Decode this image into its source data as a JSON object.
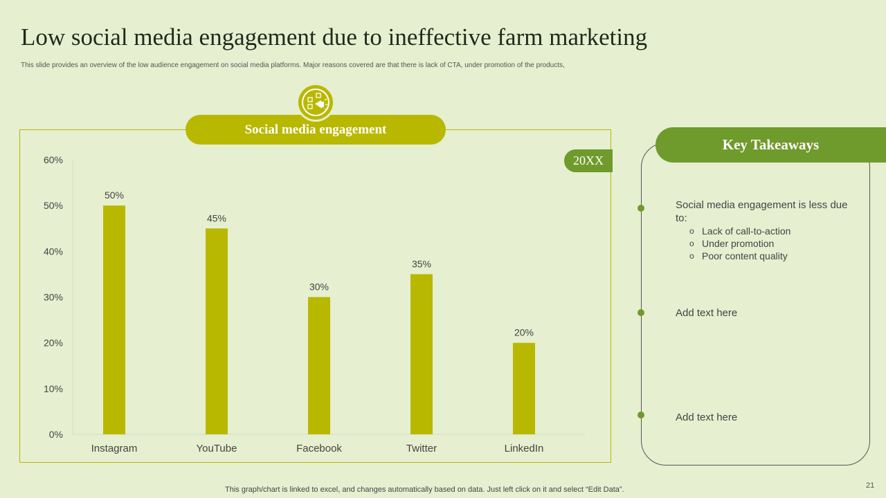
{
  "slide": {
    "title": "Low social media engagement due to ineffective farm marketing",
    "subtitle": "This slide provides an overview of the low audience engagement on social media platforms. Major reasons covered are that there is lack of CTA,  under promotion of the products,",
    "footer": "This graph/chart is linked to excel,  and changes automatically based on data. Just left click on it and select “Edit Data”.",
    "page_number": "21"
  },
  "chart_panel": {
    "header": "Social media engagement",
    "year_tab": "20XX",
    "icon": "megaphone-chart-icon"
  },
  "takeaways": {
    "header": "Key Takeaways",
    "items": [
      {
        "text": "Social media engagement is less due to:",
        "bullets": [
          "Lack of call-to-action",
          "Under promotion",
          "Poor content quality"
        ]
      },
      {
        "text": "Add text here"
      },
      {
        "text": "Add text here"
      }
    ]
  },
  "colors": {
    "background": "#e6efcf",
    "bar": "#b9b800",
    "accent_green": "#6f9a2c"
  },
  "chart_data": {
    "type": "bar",
    "categories": [
      "Instagram",
      "YouTube",
      "Facebook",
      "Twitter",
      "LinkedIn"
    ],
    "values": [
      50,
      45,
      30,
      35,
      20
    ],
    "value_labels": [
      "50%",
      "45%",
      "30%",
      "35%",
      "20%"
    ],
    "title": "Social media engagement",
    "ylim": [
      0,
      60
    ],
    "yticks": [
      0,
      10,
      20,
      30,
      40,
      50,
      60
    ],
    "ytick_labels": [
      "0%",
      "10%",
      "20%",
      "30%",
      "40%",
      "50%",
      "60%"
    ],
    "grid": false,
    "legend": "none"
  }
}
